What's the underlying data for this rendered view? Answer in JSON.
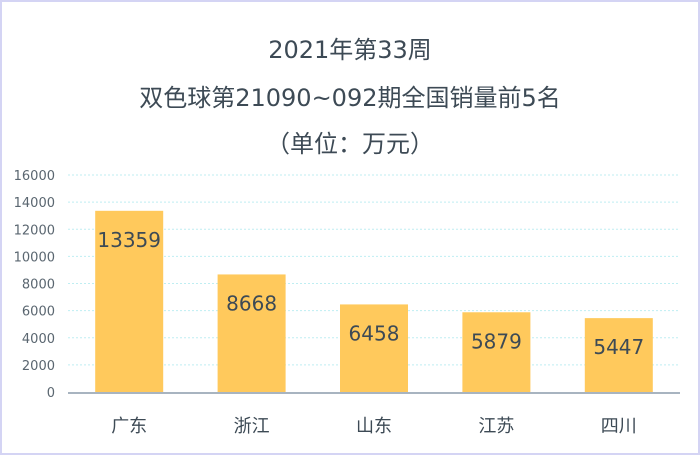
{
  "chart_data": {
    "type": "bar",
    "title_lines": [
      "2021年第33周",
      "双色球第21090~092期全国销量前5名",
      "（单位：万元）"
    ],
    "categories": [
      "广东",
      "浙江",
      "山东",
      "江苏",
      "四川"
    ],
    "values": [
      13359,
      8668,
      6458,
      5879,
      5447
    ],
    "xlabel": "",
    "ylabel": "",
    "ylim": [
      0,
      16000
    ],
    "yticks": [
      0,
      2000,
      4000,
      6000,
      8000,
      10000,
      12000,
      14000,
      16000
    ],
    "grid": true,
    "legend": "none",
    "colors": {
      "bar": "#ffc95c",
      "grid": "#bfeef2",
      "axis": "#a8b4c0",
      "text": "#3d4a55"
    }
  }
}
